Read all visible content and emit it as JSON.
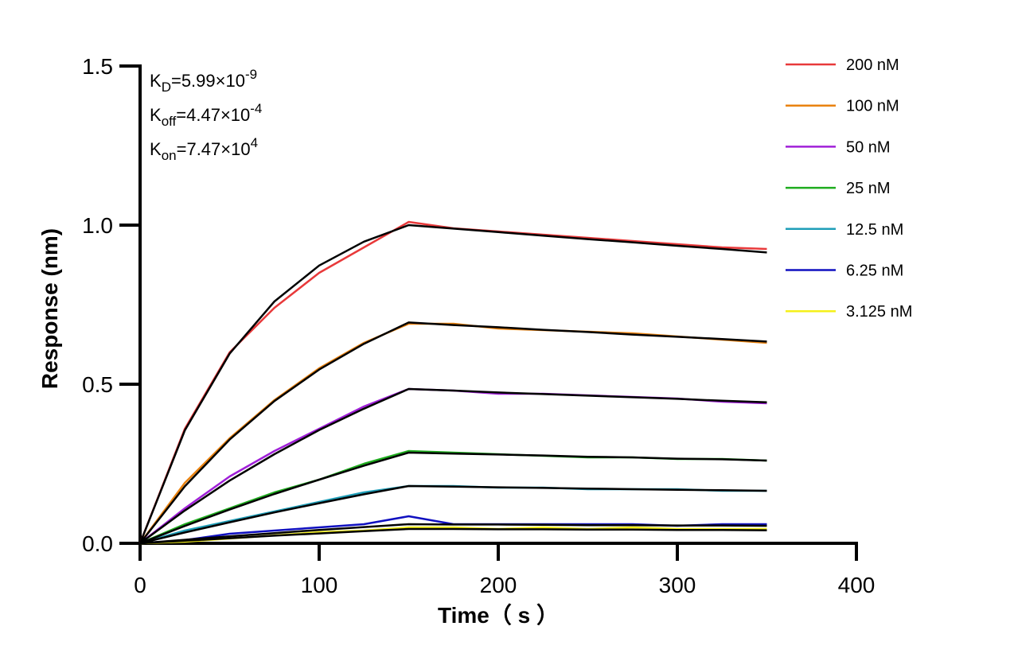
{
  "chart_data": {
    "type": "line",
    "x_label": "Time（ s ）",
    "y_label": "Response (nm)",
    "annotations": [
      {
        "symbol": "K",
        "subscript": "D",
        "value": "=5.99×10",
        "exponent": "-9"
      },
      {
        "symbol": "K",
        "subscript": "off",
        "value": "=4.47×10",
        "exponent": "-4"
      },
      {
        "symbol": "K",
        "subscript": "on",
        "value": "=7.47×10",
        "exponent": "4"
      }
    ],
    "x": [
      0,
      25,
      50,
      75,
      100,
      125,
      150,
      175,
      200,
      225,
      250,
      275,
      300,
      325,
      350
    ],
    "series": [
      {
        "name": "200 nM",
        "color": "#e8393a",
        "values": [
          0,
          0.36,
          0.6,
          0.74,
          0.85,
          0.93,
          1.01,
          0.99,
          0.98,
          0.97,
          0.96,
          0.95,
          0.94,
          0.93,
          0.925
        ]
      },
      {
        "name": "100 nM",
        "color": "#e9820f",
        "values": [
          0,
          0.19,
          0.33,
          0.45,
          0.55,
          0.63,
          0.69,
          0.69,
          0.675,
          0.67,
          0.665,
          0.66,
          0.65,
          0.64,
          0.63
        ]
      },
      {
        "name": "50 nM",
        "color": "#a020d8",
        "values": [
          0,
          0.11,
          0.21,
          0.29,
          0.36,
          0.43,
          0.485,
          0.48,
          0.47,
          0.47,
          0.465,
          0.46,
          0.455,
          0.445,
          0.44
        ]
      },
      {
        "name": "25 nM",
        "color": "#1fac1f",
        "values": [
          0,
          0.06,
          0.11,
          0.16,
          0.2,
          0.25,
          0.29,
          0.285,
          0.28,
          0.275,
          0.27,
          0.27,
          0.265,
          0.265,
          0.26
        ]
      },
      {
        "name": "12.5 nM",
        "color": "#1f9eb8",
        "values": [
          0,
          0.04,
          0.07,
          0.1,
          0.13,
          0.16,
          0.18,
          0.18,
          0.175,
          0.175,
          0.17,
          0.17,
          0.17,
          0.165,
          0.165
        ]
      },
      {
        "name": "6.25 nM",
        "color": "#1010c0",
        "values": [
          0,
          0.01,
          0.03,
          0.04,
          0.05,
          0.06,
          0.085,
          0.06,
          0.06,
          0.06,
          0.06,
          0.06,
          0.055,
          0.06,
          0.06
        ]
      },
      {
        "name": "3.125 nM",
        "color": "#f5f01a",
        "values": [
          0,
          0.005,
          0.015,
          0.025,
          0.035,
          0.04,
          0.05,
          0.05,
          0.045,
          0.05,
          0.045,
          0.05,
          0.045,
          0.045,
          0.045
        ]
      },
      {
        "color": "#000000",
        "values": [
          0,
          0.355,
          0.596,
          0.76,
          0.873,
          0.948,
          1.0,
          0.989,
          0.978,
          0.967,
          0.956,
          0.946,
          0.935,
          0.925,
          0.914
        ]
      },
      {
        "color": "#000000",
        "values": [
          0,
          0.179,
          0.326,
          0.447,
          0.546,
          0.627,
          0.694,
          0.686,
          0.679,
          0.671,
          0.664,
          0.656,
          0.649,
          0.642,
          0.634
        ]
      },
      {
        "color": "#000000",
        "values": [
          0,
          0.103,
          0.197,
          0.28,
          0.356,
          0.423,
          0.485,
          0.48,
          0.474,
          0.469,
          0.464,
          0.459,
          0.454,
          0.448,
          0.443
        ]
      },
      {
        "color": "#000000",
        "values": [
          0,
          0.0546,
          0.106,
          0.155,
          0.2,
          0.244,
          0.285,
          0.282,
          0.279,
          0.276,
          0.272,
          0.27,
          0.266,
          0.264,
          0.26
        ]
      },
      {
        "color": "#000000",
        "values": [
          0,
          0.034,
          0.066,
          0.097,
          0.126,
          0.154,
          0.18,
          0.178,
          0.176,
          0.174,
          0.172,
          0.17,
          0.168,
          0.167,
          0.165
        ]
      },
      {
        "color": "#000000",
        "values": [
          0,
          0.011,
          0.022,
          0.032,
          0.042,
          0.051,
          0.06,
          0.059,
          0.059,
          0.058,
          0.057,
          0.057,
          0.056,
          0.056,
          0.055
        ]
      },
      {
        "color": "#000000",
        "values": [
          0,
          0.008,
          0.016,
          0.024,
          0.031,
          0.038,
          0.045,
          0.045,
          0.044,
          0.044,
          0.043,
          0.043,
          0.042,
          0.042,
          0.041
        ]
      }
    ],
    "xlim": [
      0,
      400
    ],
    "ylim": [
      0,
      1.5
    ],
    "xticks": [
      0,
      100,
      200,
      300,
      400
    ],
    "yticks": [
      {
        "value": 0,
        "label": "0.0"
      },
      0.5,
      {
        "value": 1,
        "label": "1.0"
      },
      1.5
    ],
    "grid": false,
    "legend": "right"
  }
}
